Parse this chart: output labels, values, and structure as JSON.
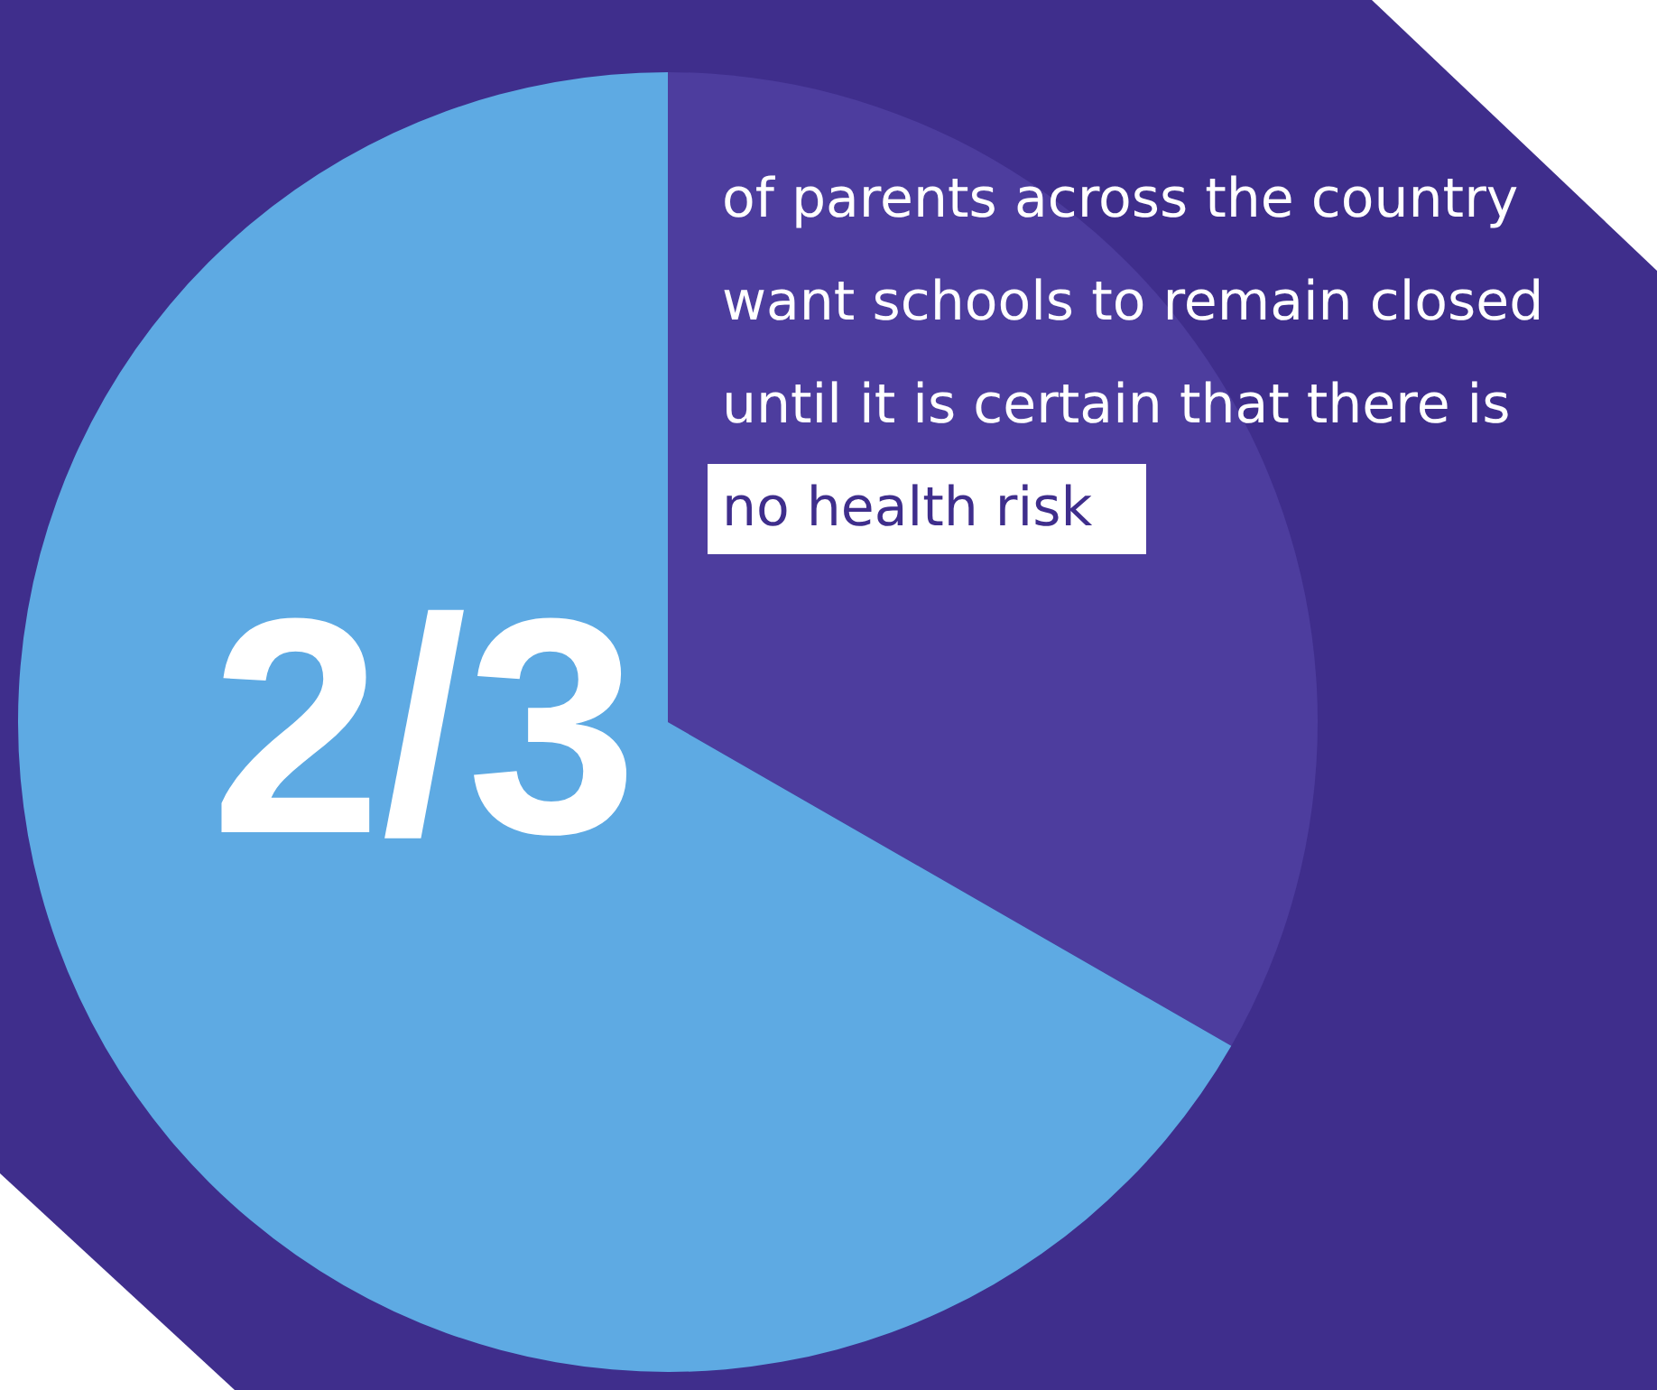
{
  "chart_data": {
    "type": "pie",
    "categories": [
      null,
      null
    ],
    "values": [
      33.3,
      66.7
    ],
    "colors": [
      "#4d3d9e",
      "#5eaae3"
    ],
    "annotations": [
      "2/3",
      "of parents across the country want schools to remain closed until it is certain that there is",
      "no health risk"
    ]
  }
}
